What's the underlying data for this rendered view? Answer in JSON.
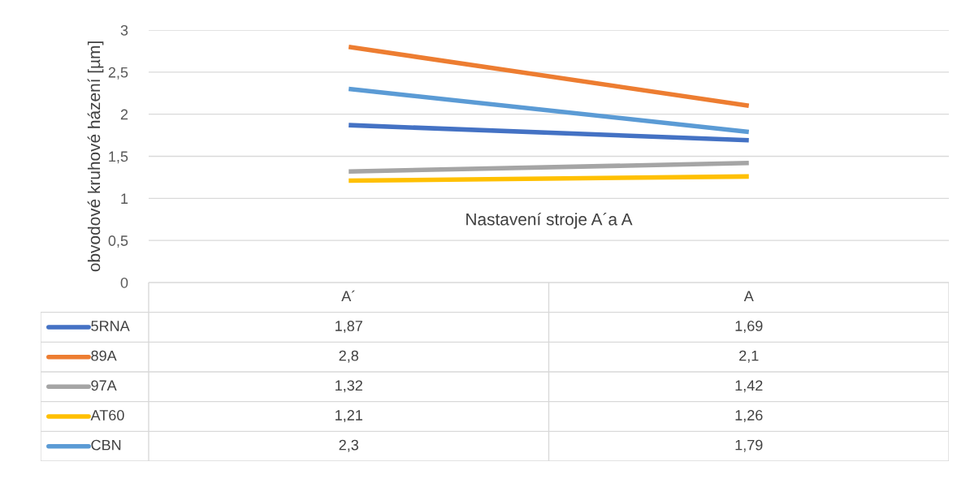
{
  "chart_data": {
    "type": "line",
    "xlabel": "Nastavení stroje A´a A",
    "ylabel": "obvodové kruhové házení [µm]",
    "categories": [
      "A´",
      "A"
    ],
    "series": [
      {
        "name": "5RNA",
        "color": "#4472c4",
        "values": [
          1.87,
          1.69
        ],
        "value_labels": [
          "1,87",
          "1,69"
        ]
      },
      {
        "name": "89A",
        "color": "#ed7d31",
        "values": [
          2.8,
          2.1
        ],
        "value_labels": [
          "2,8",
          "2,1"
        ]
      },
      {
        "name": "97A",
        "color": "#a5a5a5",
        "values": [
          1.32,
          1.42
        ],
        "value_labels": [
          "1,32",
          "1,42"
        ]
      },
      {
        "name": "AT60",
        "color": "#ffc000",
        "values": [
          1.21,
          1.26
        ],
        "value_labels": [
          "1,21",
          "1,26"
        ]
      },
      {
        "name": "CBN",
        "color": "#5b9bd5",
        "values": [
          2.3,
          1.79
        ],
        "value_labels": [
          "2,3",
          "1,79"
        ]
      }
    ],
    "ylim": [
      0,
      3
    ],
    "yticks": [
      0,
      {
        "value": 0.5,
        "label": "0,5"
      },
      1,
      {
        "value": 1.5,
        "label": "1,5"
      },
      2,
      {
        "value": 2.5,
        "label": "2,5"
      },
      3
    ],
    "grid": "y",
    "legend": "bottom",
    "marker": "none",
    "line_style": "solid"
  }
}
